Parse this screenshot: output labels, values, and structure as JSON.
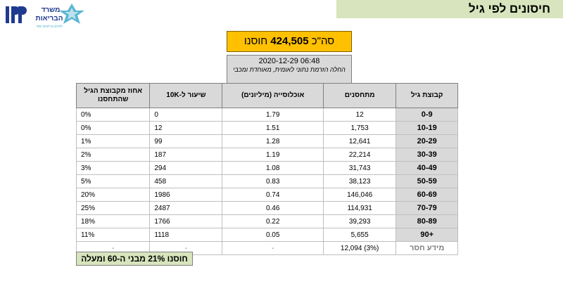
{
  "header": {
    "title": "חיסונים לפי גיל"
  },
  "logo": {
    "line1": "משרד",
    "line2": "הבריאות",
    "tagline": "לחיים בריאים יותר",
    "icon": "ministry-of-health-logo-icon"
  },
  "summary": {
    "label": "סה\"כ",
    "total": "424,505",
    "suffix": "חוסנו"
  },
  "info": {
    "datetime": "2020-12-29 06:48",
    "note": "החלה הזרמת נתוני לאומית, מאוחדת ומכבי"
  },
  "table": {
    "columns": [
      "קבוצת גיל",
      "מתחסנים",
      "אוכלוסייה (מיליונים)",
      "שיעור ל-10K",
      "אחוז מקבוצת הגיל שהתחסנו"
    ],
    "rows": [
      {
        "age": "0-9",
        "vaccinated": "12",
        "population": "1.79",
        "rate": "0",
        "pct": "0%"
      },
      {
        "age": "10-19",
        "vaccinated": "1,753",
        "population": "1.51",
        "rate": "12",
        "pct": "0%"
      },
      {
        "age": "20-29",
        "vaccinated": "12,641",
        "population": "1.28",
        "rate": "99",
        "pct": "1%"
      },
      {
        "age": "30-39",
        "vaccinated": "22,214",
        "population": "1.19",
        "rate": "187",
        "pct": "2%"
      },
      {
        "age": "40-49",
        "vaccinated": "31,743",
        "population": "1.08",
        "rate": "294",
        "pct": "3%"
      },
      {
        "age": "50-59",
        "vaccinated": "38,123",
        "population": "0.83",
        "rate": "458",
        "pct": "5%"
      },
      {
        "age": "60-69",
        "vaccinated": "146,046",
        "population": "0.74",
        "rate": "1986",
        "pct": "20%"
      },
      {
        "age": "70-79",
        "vaccinated": "114,931",
        "population": "0.46",
        "rate": "2487",
        "pct": "25%"
      },
      {
        "age": "80-89",
        "vaccinated": "39,293",
        "population": "0.22",
        "rate": "1766",
        "pct": "18%"
      },
      {
        "age": "90+",
        "vaccinated": "5,655",
        "population": "0.05",
        "rate": "1118",
        "pct": "11%"
      }
    ],
    "missing": {
      "label": "מידע חסר",
      "vaccinated": "(3%) 12,094",
      "population": "-",
      "rate": "-",
      "pct": "-"
    }
  },
  "footer": {
    "text": "חוסנו 21% מבני ה-60 ומעלה"
  },
  "colors": {
    "title_bg": "#d7e4bd",
    "total_bg": "#ffc000",
    "header_bg": "#d9d9d9",
    "logo_blue": "#1f3b8f",
    "logo_teal": "#3fa9c9"
  }
}
